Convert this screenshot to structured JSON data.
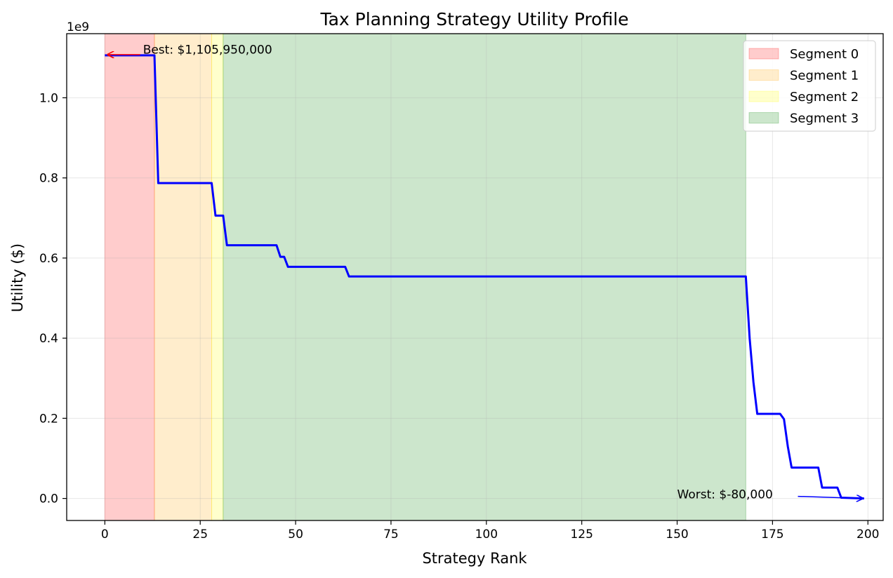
{
  "chart_data": {
    "type": "line",
    "title": "Tax Planning Strategy Utility Profile",
    "xlabel": "Strategy Rank",
    "ylabel": "Utility ($)",
    "y_offset_text": "1e9",
    "xlim": [
      -10,
      204
    ],
    "ylim": [
      -0.055,
      1.16
    ],
    "xticks": [
      0,
      25,
      50,
      75,
      100,
      125,
      150,
      175,
      200
    ],
    "xtick_labels": [
      "0",
      "25",
      "50",
      "75",
      "100",
      "125",
      "150",
      "175",
      "200"
    ],
    "yticks": [
      0.0,
      0.2,
      0.4,
      0.6,
      0.8,
      1.0
    ],
    "ytick_labels": [
      "0.0",
      "0.2",
      "0.4",
      "0.6",
      "0.8",
      "1.0"
    ],
    "grid": true,
    "legend_position": "top-right",
    "segments": [
      {
        "name": "Segment 0",
        "start": 0,
        "end": 13,
        "color": "#ff0000"
      },
      {
        "name": "Segment 1",
        "start": 13,
        "end": 28,
        "color": "#ffa500"
      },
      {
        "name": "Segment 2",
        "start": 28,
        "end": 31,
        "color": "#ffff00"
      },
      {
        "name": "Segment 3",
        "start": 31,
        "end": 168,
        "color": "#008000"
      }
    ],
    "series": [
      {
        "color": "#0000ff",
        "x": [
          0,
          13,
          14,
          28,
          29,
          31,
          32,
          45,
          46,
          47,
          48,
          63,
          64,
          168,
          169,
          170,
          171,
          177,
          178,
          179,
          180,
          187,
          188,
          192,
          193,
          199
        ],
        "y": [
          1.106,
          1.106,
          0.787,
          0.787,
          0.706,
          0.706,
          0.632,
          0.632,
          0.603,
          0.603,
          0.578,
          0.578,
          0.554,
          0.554,
          0.4,
          0.29,
          0.211,
          0.211,
          0.198,
          0.13,
          0.077,
          0.077,
          0.027,
          0.027,
          0.002,
          0.0
        ]
      }
    ],
    "annotations": [
      {
        "text": "Best: $1,105,950,000",
        "point": [
          0,
          1.106
        ],
        "text_pos": [
          10,
          1.11
        ],
        "color": "#ff0000"
      },
      {
        "text": "Worst: $-80,000",
        "point": [
          199,
          0.0
        ],
        "text_pos": [
          150,
          0.0
        ],
        "color": "#0000ff"
      }
    ]
  }
}
